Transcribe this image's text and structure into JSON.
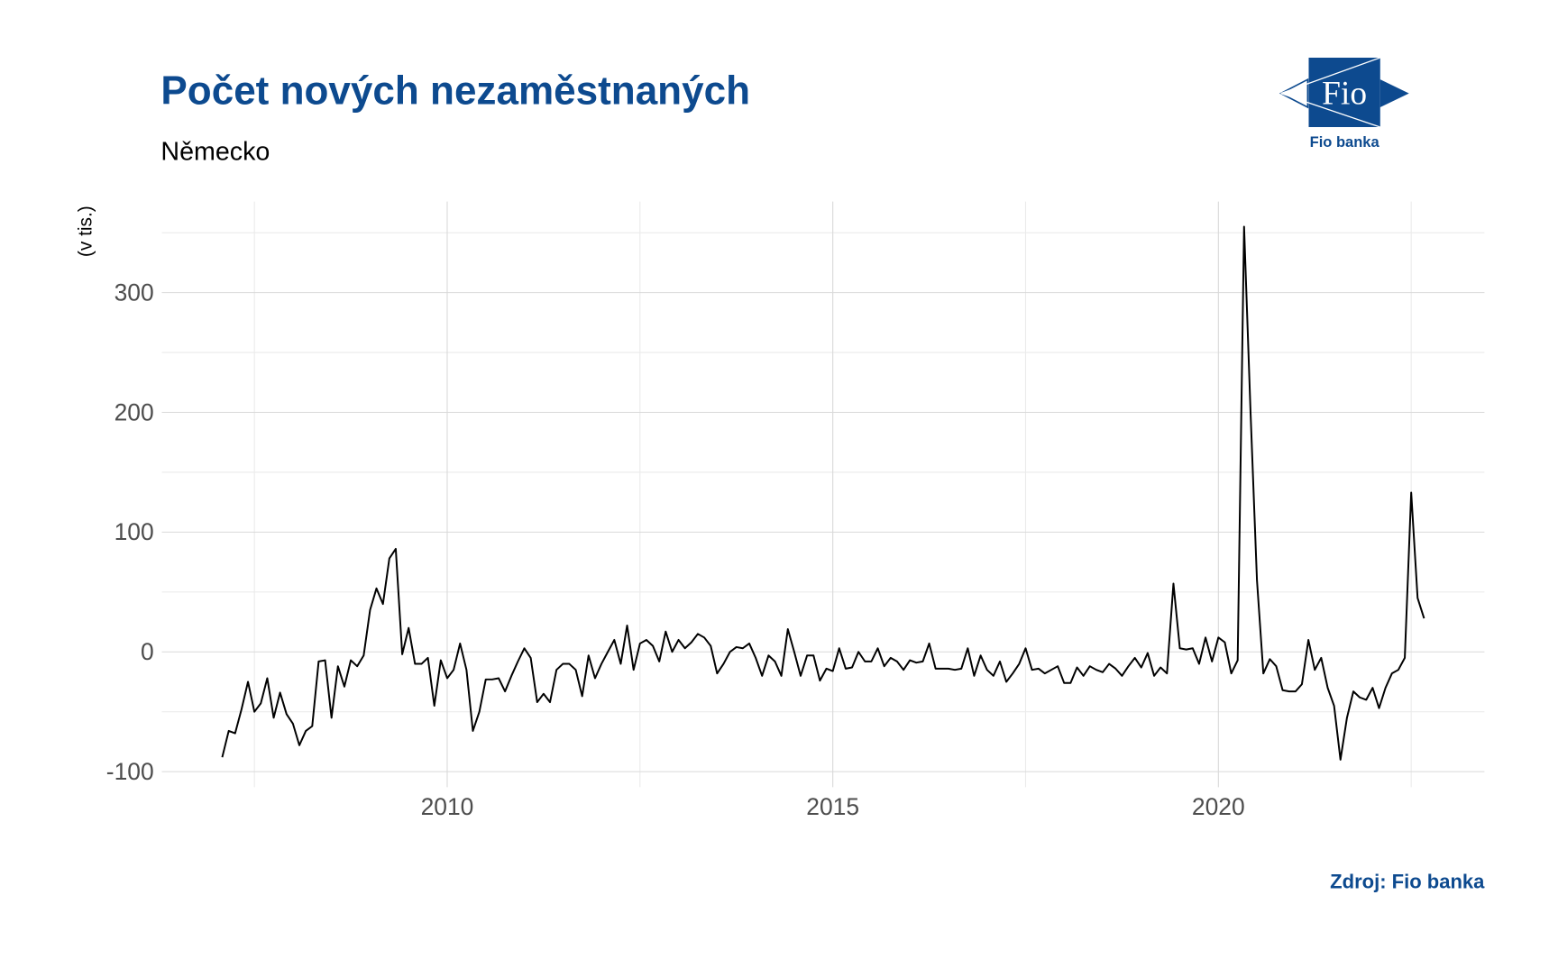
{
  "chart_data": {
    "type": "line",
    "title": "Počet nových nezaměstnaných",
    "subtitle": "Německo",
    "ylabel": "(v tis.)",
    "source": "Zdroj: Fio banka",
    "color": "#000000",
    "grid": true,
    "xlim": [
      2006.3,
      2023.45
    ],
    "xticks": [
      2010,
      2015,
      2020
    ],
    "ylim": [
      -113,
      376
    ],
    "yticks": [
      -100,
      0,
      100,
      200,
      300
    ],
    "x": [
      2007.083,
      2007.167,
      2007.25,
      2007.333,
      2007.417,
      2007.5,
      2007.583,
      2007.667,
      2007.75,
      2007.833,
      2007.917,
      2008,
      2008.083,
      2008.167,
      2008.25,
      2008.333,
      2008.417,
      2008.5,
      2008.583,
      2008.667,
      2008.75,
      2008.833,
      2008.917,
      2009,
      2009.083,
      2009.167,
      2009.25,
      2009.333,
      2009.417,
      2009.5,
      2009.583,
      2009.667,
      2009.75,
      2009.833,
      2009.917,
      2010,
      2010.083,
      2010.167,
      2010.25,
      2010.333,
      2010.417,
      2010.5,
      2010.583,
      2010.667,
      2010.75,
      2010.833,
      2010.917,
      2011,
      2011.083,
      2011.167,
      2011.25,
      2011.333,
      2011.417,
      2011.5,
      2011.583,
      2011.667,
      2011.75,
      2011.833,
      2011.917,
      2012,
      2012.083,
      2012.167,
      2012.25,
      2012.333,
      2012.417,
      2012.5,
      2012.583,
      2012.667,
      2012.75,
      2012.833,
      2012.917,
      2013,
      2013.083,
      2013.167,
      2013.25,
      2013.333,
      2013.417,
      2013.5,
      2013.583,
      2013.667,
      2013.75,
      2013.833,
      2013.917,
      2014,
      2014.083,
      2014.167,
      2014.25,
      2014.333,
      2014.417,
      2014.5,
      2014.583,
      2014.667,
      2014.75,
      2014.833,
      2014.917,
      2015,
      2015.083,
      2015.167,
      2015.25,
      2015.333,
      2015.417,
      2015.5,
      2015.583,
      2015.667,
      2015.75,
      2015.833,
      2015.917,
      2016,
      2016.083,
      2016.167,
      2016.25,
      2016.333,
      2016.417,
      2016.5,
      2016.583,
      2016.667,
      2016.75,
      2016.833,
      2016.917,
      2017,
      2017.083,
      2017.167,
      2017.25,
      2017.333,
      2017.417,
      2017.5,
      2017.583,
      2017.667,
      2017.75,
      2017.833,
      2017.917,
      2018,
      2018.083,
      2018.167,
      2018.25,
      2018.333,
      2018.417,
      2018.5,
      2018.583,
      2018.667,
      2018.75,
      2018.833,
      2018.917,
      2019,
      2019.083,
      2019.167,
      2019.25,
      2019.333,
      2019.417,
      2019.5,
      2019.583,
      2019.667,
      2019.75,
      2019.833,
      2019.917,
      2020,
      2020.083,
      2020.167,
      2020.25,
      2020.333,
      2020.417,
      2020.5,
      2020.583,
      2020.667,
      2020.75,
      2020.833,
      2020.917,
      2021,
      2021.083,
      2021.167,
      2021.25,
      2021.333,
      2021.417,
      2021.5,
      2021.583,
      2021.667,
      2021.75,
      2021.833,
      2021.917,
      2022,
      2022.083,
      2022.167,
      2022.25,
      2022.333,
      2022.417,
      2022.5,
      2022.583,
      2022.667
    ],
    "values": [
      -88,
      -66,
      -68,
      -48,
      -25,
      -50,
      -43,
      -22,
      -55,
      -34,
      -52,
      -60,
      -78,
      -66,
      -62,
      -8,
      -7,
      -55,
      -12,
      -29,
      -7,
      -12,
      -3,
      35,
      53,
      40,
      78,
      86,
      -2,
      20,
      -10,
      -10,
      -5,
      -45,
      -7,
      -22,
      -15,
      7,
      -15,
      -66,
      -50,
      -23,
      -23,
      -22,
      -33,
      -20,
      -8,
      3,
      -5,
      -42,
      -35,
      -42,
      -15,
      -10,
      -10,
      -15,
      -37,
      -3,
      -22,
      -10,
      0,
      10,
      -10,
      22,
      -15,
      7,
      10,
      5,
      -8,
      17,
      0,
      10,
      3,
      8,
      15,
      12,
      5,
      -18,
      -10,
      0,
      4,
      3,
      7,
      -5,
      -20,
      -3,
      -8,
      -20,
      19,
      0,
      -20,
      -3,
      -3,
      -24,
      -14,
      -16,
      3,
      -14,
      -13,
      0,
      -8,
      -8,
      3,
      -12,
      -5,
      -8,
      -15,
      -7,
      -9,
      -8,
      7,
      -14,
      -14,
      -14,
      -15,
      -14,
      3,
      -20,
      -3,
      -15,
      -20,
      -8,
      -25,
      -18,
      -10,
      3,
      -15,
      -14,
      -18,
      -15,
      -12,
      -26,
      -26,
      -13,
      -20,
      -12,
      -15,
      -17,
      -10,
      -14,
      -20,
      -12,
      -5,
      -13,
      -1,
      -20,
      -13,
      -18,
      57,
      3,
      2,
      3,
      -10,
      12,
      -8,
      12,
      8,
      -18,
      -7,
      355,
      200,
      60,
      -18,
      -6,
      -12,
      -32,
      -33,
      -33,
      -27,
      10,
      -15,
      -5,
      -30,
      -45,
      -90,
      -55,
      -33,
      -38,
      -40,
      -30,
      -47,
      -30,
      -18,
      -15,
      -5,
      133,
      45,
      28
    ]
  },
  "logo": {
    "mark": "Fio",
    "name": "Fio banka"
  }
}
